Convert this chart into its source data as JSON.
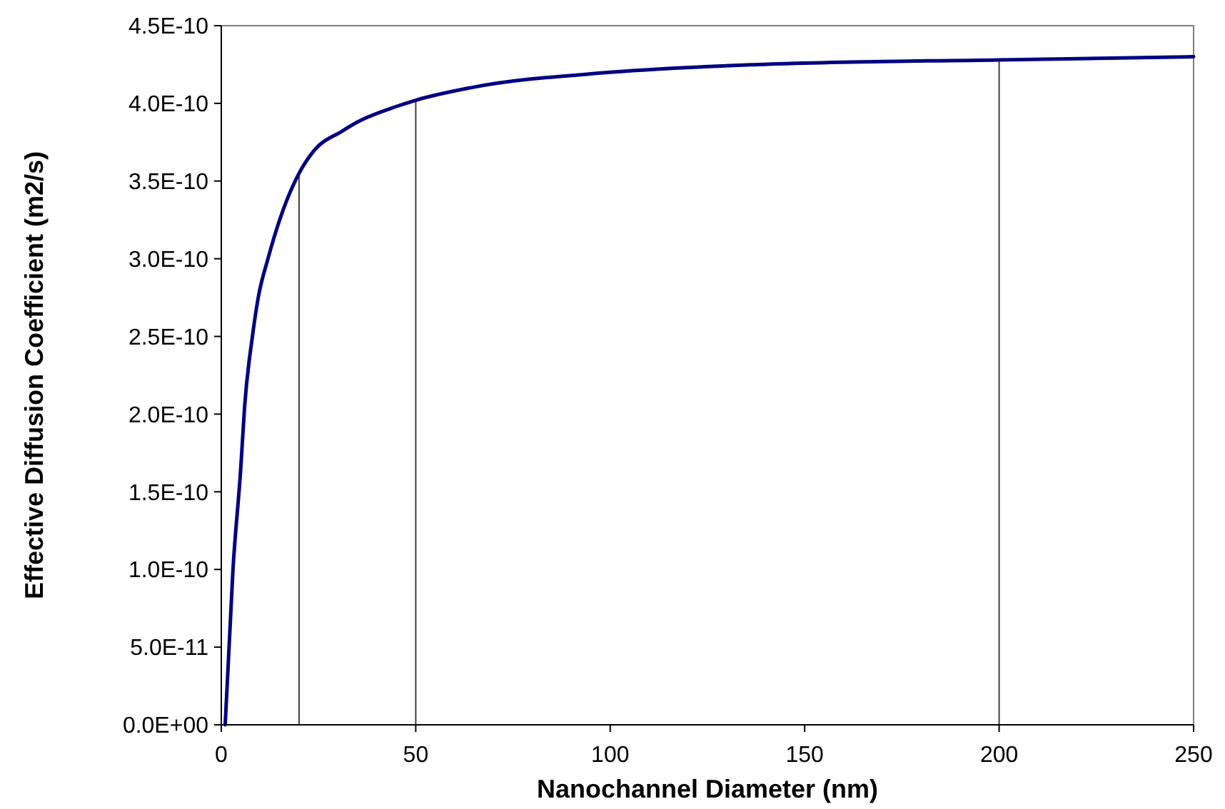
{
  "chart_data": {
    "type": "line",
    "xlabel": "Nanochannel Diameter (nm)",
    "ylabel": "Effective Diffusion Coefficient (m2/s)",
    "xlim": [
      0,
      250
    ],
    "xticks": [
      0,
      50,
      100,
      150,
      200,
      250
    ],
    "ylim": [
      0,
      4.5e-10
    ],
    "yticks": [
      {
        "value": 0,
        "label": "0.0E+00"
      },
      {
        "value": 5e-11,
        "label": "5.0E-11"
      },
      {
        "value": 1e-10,
        "label": "1.0E-10"
      },
      {
        "value": 1.5e-10,
        "label": "1.5E-10"
      },
      {
        "value": 2e-10,
        "label": "2.0E-10"
      },
      {
        "value": 2.5e-10,
        "label": "2.5E-10"
      },
      {
        "value": 3e-10,
        "label": "3.0E-10"
      },
      {
        "value": 3.5e-10,
        "label": "3.5E-10"
      },
      {
        "value": 4e-10,
        "label": "4.0E-10"
      },
      {
        "value": 4.5e-10,
        "label": "4.5E-10"
      }
    ],
    "marker": "none",
    "line_style": "solid",
    "series": [
      {
        "color": "#000080",
        "x": [
          1,
          3,
          5,
          6,
          8,
          9.5,
          12,
          15,
          20,
          24,
          31,
          35,
          45,
          50,
          64,
          100,
          138,
          200,
          250
        ],
        "values": [
          0,
          1e-10,
          1.65e-10,
          2.05e-10,
          2.5e-10,
          2.75e-10,
          3e-10,
          3.25e-10,
          3.55e-10,
          3.7e-10,
          3.82e-10,
          3.88e-10,
          3.98e-10,
          4.02e-10,
          4.1e-10,
          4.2e-10,
          4.25e-10,
          4.28e-10,
          4.3e-10
        ]
      }
    ],
    "ref_lines": [
      {
        "axis": "x",
        "value": 20,
        "color": "#404040"
      },
      {
        "axis": "x",
        "value": 50,
        "color": "#404040"
      },
      {
        "axis": "x",
        "value": 200,
        "color": "#404040"
      }
    ]
  }
}
